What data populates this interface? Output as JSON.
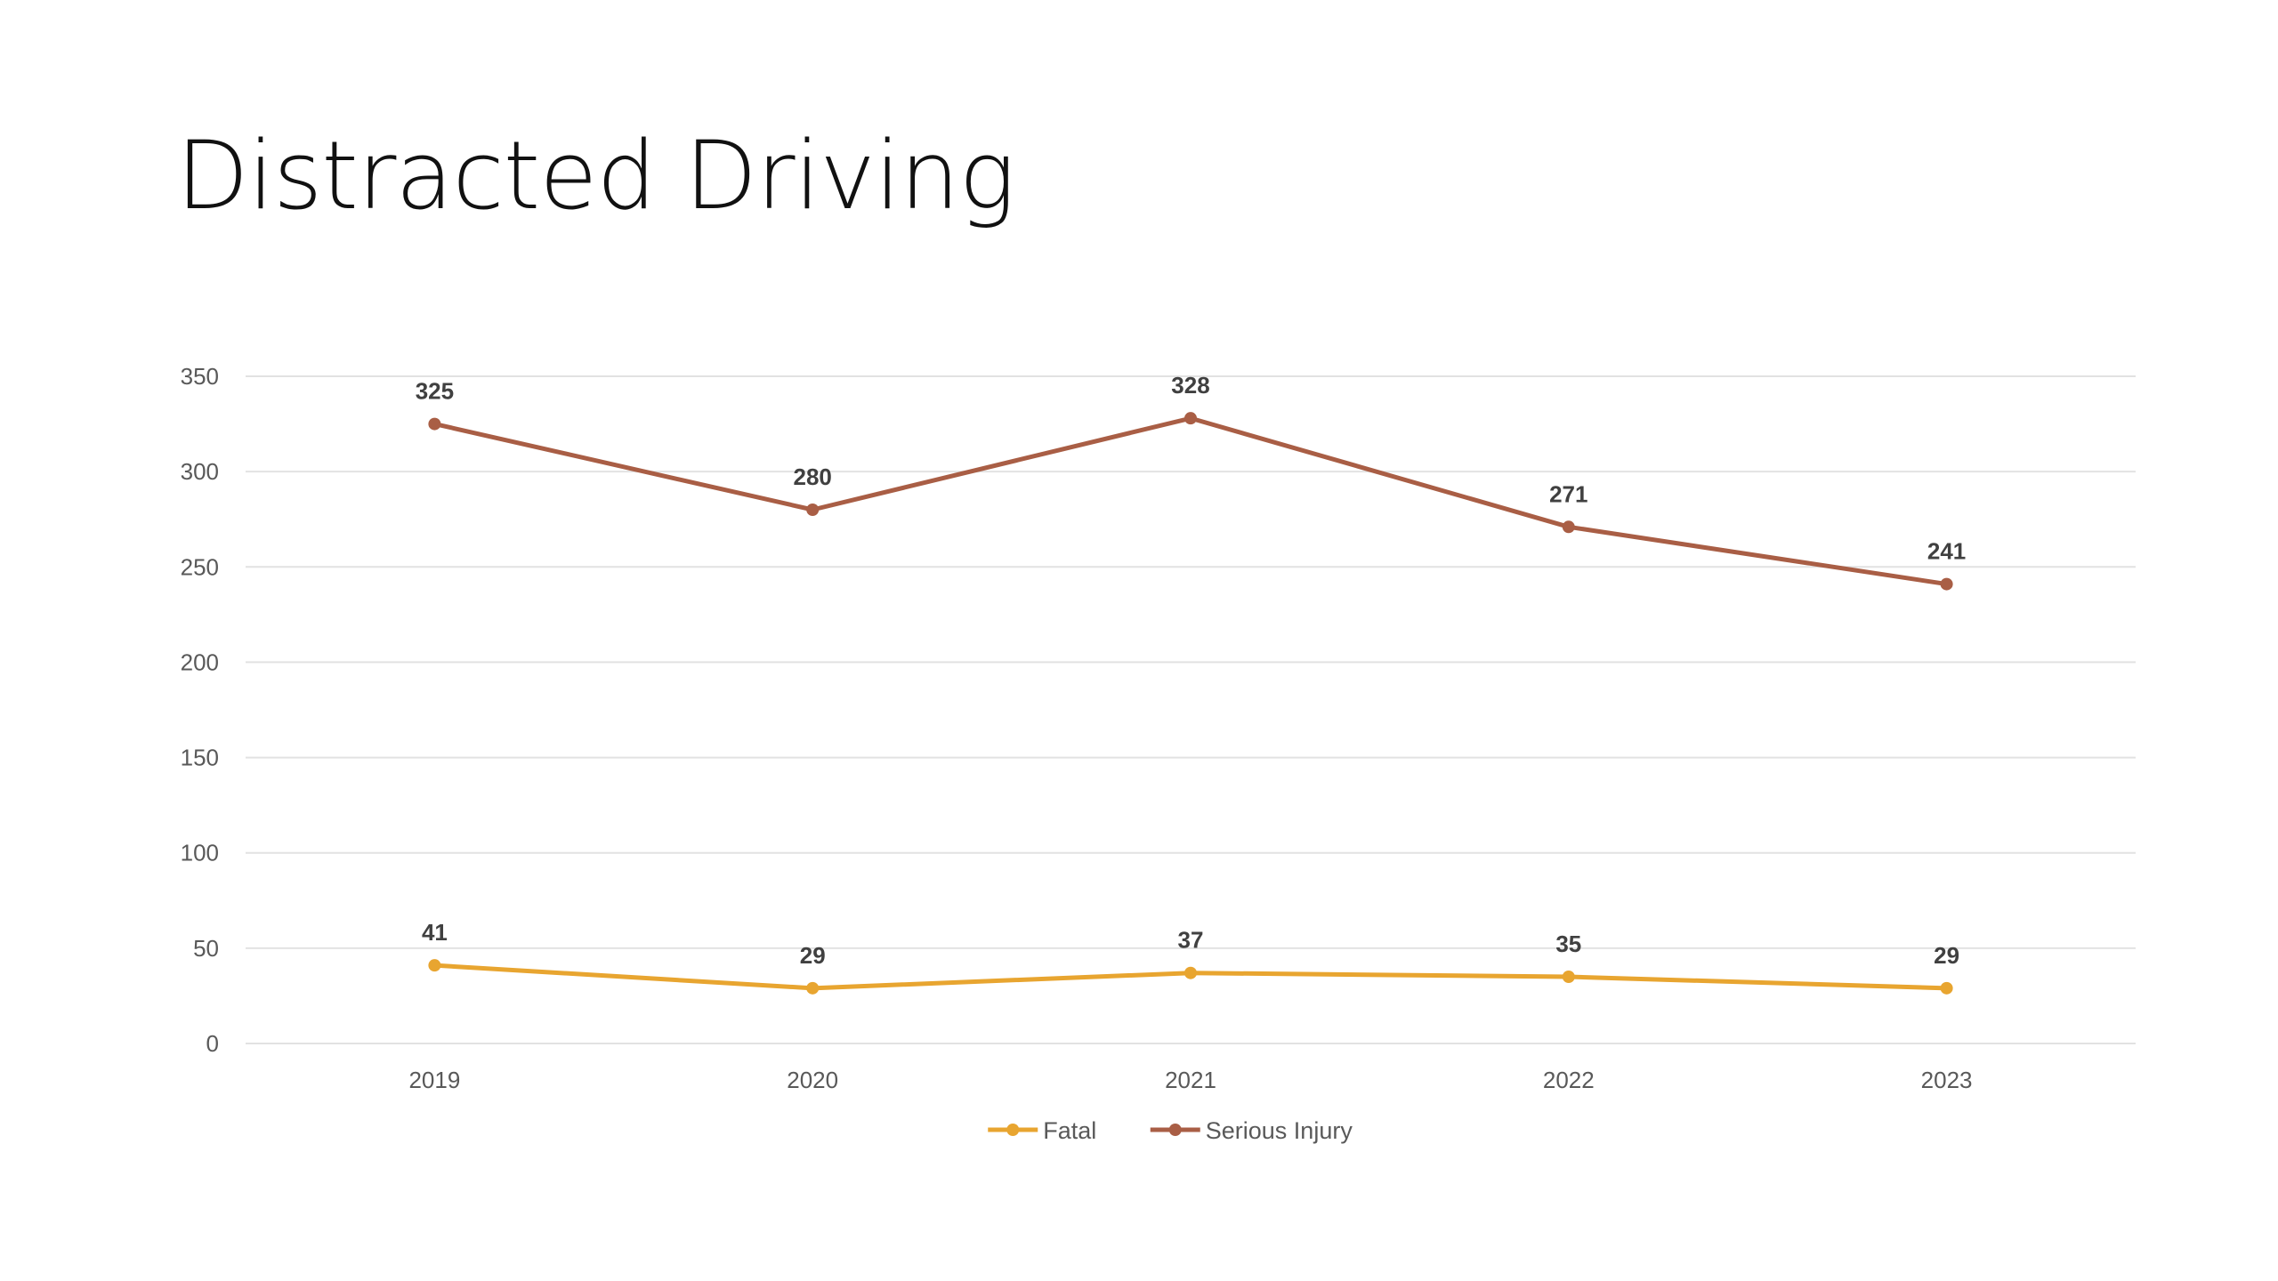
{
  "slide": {
    "title": "Distracted Driving"
  },
  "colors": {
    "fatal": "#E8A530",
    "serious_injury": "#A95E45",
    "gridline": "#E2E2E2",
    "tick_text": "#595959",
    "data_label_text": "#404040"
  },
  "chart_data": {
    "type": "line",
    "title": "",
    "xlabel": "",
    "ylabel": "",
    "categories": [
      "2019",
      "2020",
      "2021",
      "2022",
      "2023"
    ],
    "series": [
      {
        "name": "Fatal",
        "values": [
          41,
          29,
          37,
          35,
          29
        ],
        "color": "#E8A530"
      },
      {
        "name": "Serious Injury",
        "values": [
          325,
          280,
          328,
          271,
          241
        ],
        "color": "#A95E45"
      }
    ],
    "ylim": [
      0,
      350
    ],
    "yticks": [
      0,
      50,
      100,
      150,
      200,
      250,
      300,
      350
    ],
    "grid": true,
    "legend": "bottom-center",
    "data_labels": true
  }
}
